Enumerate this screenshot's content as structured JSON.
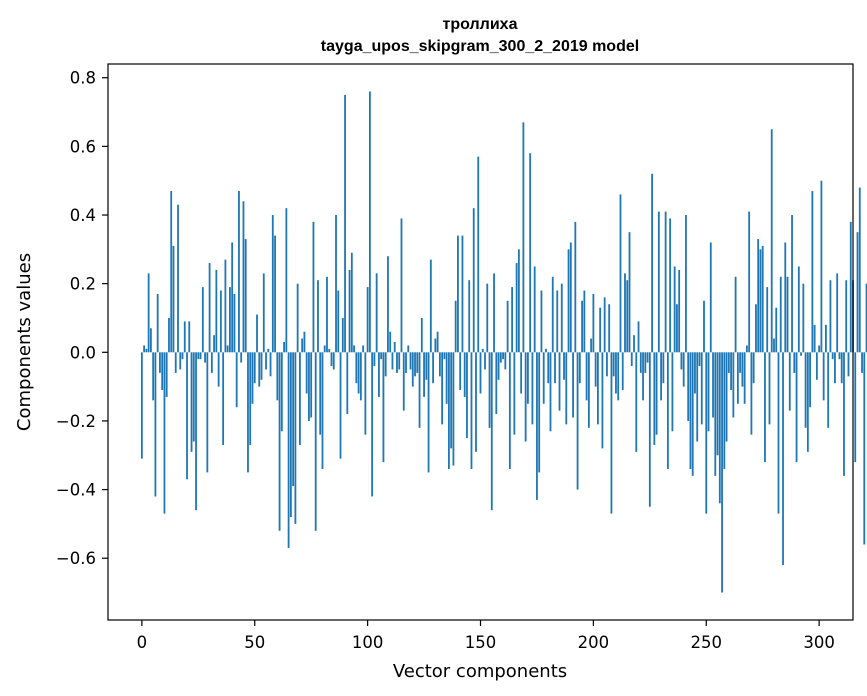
{
  "chart_data": {
    "type": "bar",
    "title": "троллиха",
    "subtitle": "tayga_upos_skipgram_300_2_2019 model",
    "xlabel": "Vector components",
    "ylabel": "Components values",
    "xlim": [
      -15,
      315
    ],
    "ylim": [
      -0.78,
      0.84
    ],
    "xticks": [
      0,
      50,
      100,
      150,
      200,
      250,
      300
    ],
    "xtick_labels": [
      "0",
      "50",
      "100",
      "150",
      "200",
      "250",
      "300"
    ],
    "yticks": [
      -0.6,
      -0.4,
      -0.2,
      0.0,
      0.2,
      0.4,
      0.6,
      0.8
    ],
    "ytick_labels": [
      "−0.6",
      "−0.4",
      "−0.2",
      "0.0",
      "0.2",
      "0.4",
      "0.6",
      "0.8"
    ],
    "bar_color": "#1f77b4",
    "series": [
      {
        "name": "components",
        "values": [
          -0.31,
          0.02,
          0.01,
          0.23,
          0.07,
          -0.14,
          -0.42,
          0.17,
          -0.06,
          -0.11,
          -0.47,
          -0.13,
          0.1,
          0.47,
          0.31,
          -0.06,
          0.43,
          -0.05,
          -0.02,
          0.09,
          -0.37,
          0.09,
          -0.29,
          -0.26,
          -0.46,
          -0.02,
          -0.02,
          0.19,
          -0.03,
          -0.35,
          0.26,
          -0.06,
          0.05,
          0.24,
          -0.1,
          0.18,
          -0.27,
          0.27,
          0.02,
          0.19,
          0.32,
          0.17,
          -0.16,
          0.47,
          -0.03,
          0.44,
          0.33,
          -0.35,
          -0.27,
          -0.15,
          -0.09,
          0.11,
          -0.1,
          -0.08,
          0.23,
          -0.05,
          0.01,
          -0.07,
          0.4,
          0.34,
          -0.14,
          -0.52,
          -0.23,
          0.03,
          0.42,
          -0.57,
          -0.48,
          -0.39,
          -0.5,
          0.2,
          -0.27,
          0.04,
          0.06,
          -0.12,
          -0.2,
          -0.19,
          0.38,
          -0.52,
          0.21,
          -0.24,
          -0.34,
          0.02,
          0.22,
          0.01,
          -0.04,
          -0.05,
          0.4,
          0.18,
          -0.31,
          0.1,
          0.75,
          -0.18,
          0.24,
          0.29,
          0.02,
          -0.09,
          -0.12,
          -0.14,
          0.02,
          -0.24,
          0.19,
          0.76,
          -0.42,
          -0.04,
          0.23,
          -0.13,
          -0.02,
          -0.32,
          -0.07,
          0.28,
          0.06,
          -0.05,
          0.03,
          -0.06,
          -0.05,
          0.39,
          -0.17,
          -0.06,
          0.02,
          -0.05,
          -0.1,
          -0.07,
          -0.06,
          -0.22,
          0.1,
          -0.13,
          -0.08,
          -0.35,
          0.27,
          -0.09,
          0.04,
          0.06,
          -0.07,
          -0.21,
          -0.02,
          -0.15,
          -0.34,
          -0.28,
          -0.33,
          0.15,
          0.34,
          -0.11,
          0.34,
          -0.13,
          -0.25,
          0.21,
          -0.34,
          0.42,
          -0.29,
          0.57,
          -0.12,
          0.01,
          -0.05,
          0.2,
          -0.22,
          -0.46,
          0.23,
          -0.18,
          -0.08,
          -0.03,
          -0.02,
          -0.05,
          0.15,
          -0.34,
          0.19,
          -0.24,
          0.26,
          0.3,
          -0.12,
          0.67,
          -0.26,
          -0.15,
          0.58,
          -0.21,
          0.25,
          -0.43,
          -0.35,
          0.18,
          -0.15,
          0.01,
          -0.09,
          -0.23,
          0.22,
          -0.09,
          0.18,
          -0.17,
          0.2,
          -0.08,
          -0.21,
          0.3,
          0.32,
          -0.19,
          0.38,
          -0.4,
          -0.09,
          0.15,
          0.18,
          -0.14,
          -0.22,
          0.04,
          0.17,
          -0.1,
          -0.21,
          0.13,
          -0.28,
          0.16,
          -0.07,
          0.14,
          -0.47,
          -0.07,
          -0.12,
          -0.14,
          0.46,
          -0.11,
          0.23,
          0.21,
          0.35,
          -0.04,
          0.05,
          -0.29,
          0.09,
          -0.06,
          -0.14,
          -0.06,
          -0.03,
          -0.45,
          0.52,
          -0.27,
          -0.24,
          0.41,
          -0.14,
          -0.09,
          0.41,
          -0.34,
          0.39,
          -0.23,
          0.25,
          0.14,
          0.24,
          -0.05,
          -0.1,
          0.4,
          -0.2,
          -0.34,
          -0.36,
          -0.12,
          -0.26,
          -0.04,
          -0.21,
          0.15,
          -0.47,
          -0.23,
          0.32,
          -0.19,
          -0.36,
          -0.3,
          -0.44,
          -0.7,
          -0.34,
          -0.26,
          -0.06,
          -0.11,
          -0.19,
          0.22,
          -0.15,
          -0.06,
          -0.1,
          -0.15,
          0.02,
          0.41,
          -0.24,
          -0.09,
          0.14,
          0.33,
          0.3,
          0.31,
          -0.32,
          0.19,
          -0.21,
          0.65,
          0.04,
          0.13,
          -0.47,
          0.22,
          -0.62,
          0.32,
          0.22,
          -0.17,
          0.4,
          -0.06,
          -0.32,
          0.25,
          -0.01,
          0.2,
          -0.22,
          -0.29,
          -0.16,
          0.47,
          0.08,
          -0.08,
          0.02,
          0.5,
          -0.14,
          0.08,
          -0.22,
          0.21,
          -0.02,
          -0.09,
          0.23,
          -0.02,
          -0.09,
          -0.36,
          0.21,
          -0.07,
          0.38,
          0.21,
          -0.32,
          0.35,
          0.48,
          -0.06,
          -0.56,
          0.2,
          0.05
        ]
      }
    ]
  }
}
